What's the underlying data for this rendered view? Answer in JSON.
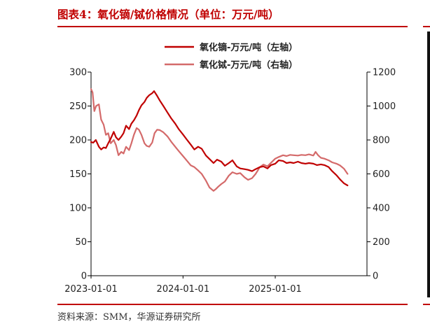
{
  "figure": {
    "title": "图表4：氧化镝/铽价格情况（单位：万元/吨）",
    "source": "资料来源：SMM，华源证券研究所"
  },
  "chart_data": {
    "type": "line",
    "x_range": [
      "2023-01-01",
      "2025-12-31"
    ],
    "x_ticks": [
      "2023-01-01",
      "2024-01-01",
      "2025-01-01"
    ],
    "y_left": {
      "range": [
        0,
        300
      ],
      "ticks": [
        0,
        50,
        100,
        150,
        200,
        250,
        300
      ]
    },
    "y_right": {
      "range": [
        0,
        1200
      ],
      "ticks": [
        0,
        200,
        400,
        600,
        800,
        1000,
        1200
      ]
    },
    "grid": false,
    "legend_position": "top-center",
    "series": [
      {
        "name": "氧化镝-万元/吨（左轴）",
        "axis": "left",
        "color": "#c00000",
        "points": [
          [
            "2023-01-01",
            197
          ],
          [
            "2023-01-10",
            196
          ],
          [
            "2023-01-20",
            200
          ],
          [
            "2023-02-01",
            190
          ],
          [
            "2023-02-10",
            186
          ],
          [
            "2023-02-20",
            189
          ],
          [
            "2023-03-01",
            188
          ],
          [
            "2023-03-10",
            195
          ],
          [
            "2023-03-20",
            202
          ],
          [
            "2023-04-01",
            212
          ],
          [
            "2023-04-10",
            204
          ],
          [
            "2023-04-20",
            200
          ],
          [
            "2023-05-01",
            205
          ],
          [
            "2023-05-10",
            210
          ],
          [
            "2023-05-20",
            221
          ],
          [
            "2023-06-01",
            216
          ],
          [
            "2023-06-10",
            224
          ],
          [
            "2023-06-20",
            229
          ],
          [
            "2023-07-01",
            236
          ],
          [
            "2023-07-10",
            244
          ],
          [
            "2023-07-20",
            251
          ],
          [
            "2023-08-01",
            256
          ],
          [
            "2023-08-10",
            262
          ],
          [
            "2023-08-20",
            266
          ],
          [
            "2023-09-01",
            269
          ],
          [
            "2023-09-08",
            272
          ],
          [
            "2023-09-20",
            265
          ],
          [
            "2023-10-01",
            258
          ],
          [
            "2023-10-15",
            250
          ],
          [
            "2023-11-01",
            240
          ],
          [
            "2023-11-15",
            232
          ],
          [
            "2023-12-01",
            224
          ],
          [
            "2023-12-15",
            216
          ],
          [
            "2024-01-01",
            208
          ],
          [
            "2024-01-15",
            201
          ],
          [
            "2024-02-01",
            193
          ],
          [
            "2024-02-15",
            186
          ],
          [
            "2024-03-01",
            190
          ],
          [
            "2024-03-15",
            187
          ],
          [
            "2024-04-01",
            177
          ],
          [
            "2024-04-15",
            172
          ],
          [
            "2024-05-01",
            166
          ],
          [
            "2024-05-15",
            171
          ],
          [
            "2024-06-01",
            168
          ],
          [
            "2024-06-15",
            162
          ],
          [
            "2024-07-01",
            166
          ],
          [
            "2024-07-15",
            170
          ],
          [
            "2024-08-01",
            161
          ],
          [
            "2024-08-15",
            158
          ],
          [
            "2024-09-01",
            157
          ],
          [
            "2024-09-15",
            156
          ],
          [
            "2024-10-01",
            154
          ],
          [
            "2024-10-15",
            157
          ],
          [
            "2024-11-01",
            160
          ],
          [
            "2024-11-15",
            161
          ],
          [
            "2024-12-01",
            158
          ],
          [
            "2024-12-15",
            163
          ],
          [
            "2025-01-01",
            165
          ],
          [
            "2025-01-15",
            170
          ],
          [
            "2025-02-01",
            169
          ],
          [
            "2025-02-15",
            166
          ],
          [
            "2025-03-01",
            167
          ],
          [
            "2025-03-15",
            166
          ],
          [
            "2025-04-01",
            168
          ],
          [
            "2025-04-15",
            166
          ],
          [
            "2025-05-01",
            165
          ],
          [
            "2025-05-15",
            166
          ],
          [
            "2025-06-01",
            165
          ],
          [
            "2025-06-15",
            163
          ],
          [
            "2025-07-01",
            164
          ],
          [
            "2025-07-15",
            163
          ],
          [
            "2025-08-01",
            160
          ],
          [
            "2025-08-15",
            154
          ],
          [
            "2025-09-01",
            148
          ],
          [
            "2025-09-15",
            142
          ],
          [
            "2025-10-01",
            136
          ],
          [
            "2025-10-15",
            133
          ]
        ]
      },
      {
        "name": "氧化铽-万元/吨（右轴）",
        "axis": "right",
        "color": "#d46a6a",
        "points": [
          [
            "2023-01-01",
            1100
          ],
          [
            "2023-01-07",
            1080
          ],
          [
            "2023-01-14",
            970
          ],
          [
            "2023-01-21",
            1000
          ],
          [
            "2023-02-01",
            1010
          ],
          [
            "2023-02-10",
            920
          ],
          [
            "2023-02-20",
            890
          ],
          [
            "2023-03-01",
            830
          ],
          [
            "2023-03-10",
            840
          ],
          [
            "2023-03-20",
            780
          ],
          [
            "2023-04-01",
            800
          ],
          [
            "2023-04-10",
            770
          ],
          [
            "2023-04-20",
            710
          ],
          [
            "2023-05-01",
            730
          ],
          [
            "2023-05-10",
            720
          ],
          [
            "2023-05-20",
            760
          ],
          [
            "2023-06-01",
            740
          ],
          [
            "2023-06-10",
            780
          ],
          [
            "2023-06-20",
            830
          ],
          [
            "2023-07-01",
            870
          ],
          [
            "2023-07-10",
            860
          ],
          [
            "2023-07-20",
            830
          ],
          [
            "2023-08-01",
            780
          ],
          [
            "2023-08-10",
            765
          ],
          [
            "2023-08-20",
            760
          ],
          [
            "2023-09-01",
            785
          ],
          [
            "2023-09-10",
            840
          ],
          [
            "2023-09-20",
            860
          ],
          [
            "2023-10-01",
            858
          ],
          [
            "2023-10-15",
            845
          ],
          [
            "2023-11-01",
            820
          ],
          [
            "2023-11-15",
            790
          ],
          [
            "2023-12-01",
            760
          ],
          [
            "2023-12-15",
            735
          ],
          [
            "2024-01-01",
            705
          ],
          [
            "2024-01-15",
            680
          ],
          [
            "2024-02-01",
            650
          ],
          [
            "2024-02-15",
            640
          ],
          [
            "2024-03-01",
            620
          ],
          [
            "2024-03-15",
            600
          ],
          [
            "2024-04-01",
            560
          ],
          [
            "2024-04-15",
            520
          ],
          [
            "2024-05-01",
            500
          ],
          [
            "2024-05-10",
            510
          ],
          [
            "2024-05-20",
            525
          ],
          [
            "2024-06-01",
            540
          ],
          [
            "2024-06-15",
            555
          ],
          [
            "2024-07-01",
            590
          ],
          [
            "2024-07-15",
            610
          ],
          [
            "2024-08-01",
            600
          ],
          [
            "2024-08-15",
            605
          ],
          [
            "2024-09-01",
            580
          ],
          [
            "2024-09-15",
            565
          ],
          [
            "2024-10-01",
            575
          ],
          [
            "2024-10-15",
            600
          ],
          [
            "2024-11-01",
            640
          ],
          [
            "2024-11-15",
            655
          ],
          [
            "2024-12-01",
            645
          ],
          [
            "2024-12-15",
            665
          ],
          [
            "2025-01-01",
            690
          ],
          [
            "2025-01-15",
            700
          ],
          [
            "2025-02-01",
            710
          ],
          [
            "2025-02-15",
            705
          ],
          [
            "2025-03-01",
            712
          ],
          [
            "2025-03-15",
            710
          ],
          [
            "2025-04-01",
            708
          ],
          [
            "2025-04-15",
            712
          ],
          [
            "2025-05-01",
            710
          ],
          [
            "2025-05-15",
            715
          ],
          [
            "2025-06-01",
            708
          ],
          [
            "2025-06-10",
            730
          ],
          [
            "2025-06-20",
            710
          ],
          [
            "2025-07-01",
            695
          ],
          [
            "2025-07-15",
            690
          ],
          [
            "2025-08-01",
            680
          ],
          [
            "2025-08-15",
            668
          ],
          [
            "2025-09-01",
            660
          ],
          [
            "2025-09-15",
            650
          ],
          [
            "2025-10-01",
            630
          ],
          [
            "2025-10-15",
            600
          ]
        ]
      }
    ]
  }
}
